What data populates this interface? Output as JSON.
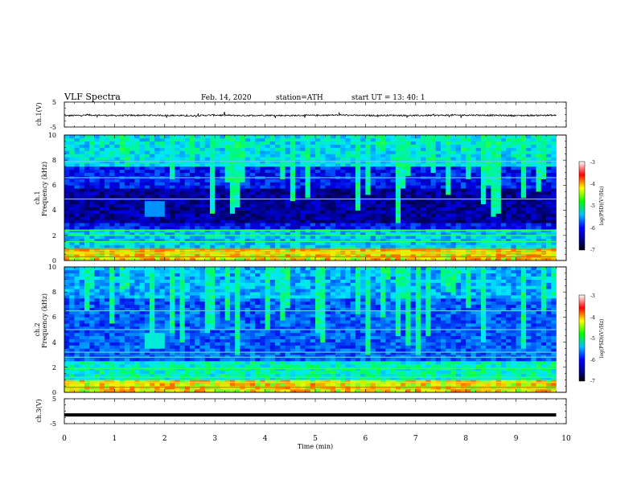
{
  "header": {
    "title": "VLF  Spectra",
    "date": "Feb. 14, 2020",
    "station": "station=ATH",
    "start": "start  UT  =   13: 40: 1"
  },
  "chart_data": [
    {
      "type": "line",
      "panel": "ch1-waveform",
      "ylabel": "ch.1(V)",
      "ylim": [
        -5,
        5
      ],
      "yticks": [
        "5",
        "-5"
      ],
      "xlim": [
        0,
        10
      ],
      "series": [
        {
          "color": "#000000",
          "x": [
            0,
            0.5,
            1,
            1.5,
            2,
            2.5,
            3,
            3.5,
            4,
            4.5,
            5,
            5.5,
            6,
            6.5,
            7,
            7.5,
            8,
            8.5,
            9,
            9.5,
            9.8
          ],
          "values": [
            -0.5,
            -0.2,
            -0.4,
            -0.3,
            -0.3,
            -0.5,
            -0.2,
            -0.4,
            -0.3,
            -0.4,
            -0.3,
            -0.2,
            -0.4,
            -0.3,
            -0.4,
            -0.3,
            -0.2,
            -0.3,
            -0.4,
            -0.3,
            -0.3
          ]
        }
      ]
    },
    {
      "type": "heatmap",
      "panel": "ch1-spectrogram",
      "title": "ch.1",
      "ylabel": "Frequency  (kHz)",
      "ylim": [
        0,
        10
      ],
      "yticks": [
        "0",
        "2",
        "4",
        "6",
        "8",
        "10"
      ],
      "xlim": [
        0,
        10
      ],
      "data_end_min": 9.8,
      "colorbar": {
        "label": "log(PSD)(V²/Hz)",
        "range": [
          -7,
          -3
        ],
        "ticks": [
          "-3",
          "-4",
          "-5",
          "-6",
          "-7"
        ]
      }
    },
    {
      "type": "heatmap",
      "panel": "ch2-spectrogram",
      "title": "ch.2",
      "ylabel": "Frequency  (kHz)",
      "ylim": [
        0,
        10
      ],
      "yticks": [
        "0",
        "2",
        "4",
        "6",
        "8",
        "10"
      ],
      "xlim": [
        0,
        10
      ],
      "data_end_min": 9.8,
      "colorbar": {
        "label": "log(PSD)(V²/Hz)",
        "range": [
          -7,
          -3
        ],
        "ticks": [
          "-3",
          "-4",
          "-5",
          "-6",
          "-7"
        ]
      }
    },
    {
      "type": "line",
      "panel": "ch3-waveform",
      "ylabel": "ch.3(V)",
      "ylim": [
        -5,
        5
      ],
      "yticks": [
        "5",
        "-5"
      ],
      "xlim": [
        0,
        10
      ],
      "xlabel": "Time  (min)",
      "xticks": [
        "0",
        "1",
        "2",
        "3",
        "4",
        "5",
        "6",
        "7",
        "8",
        "9",
        "10"
      ],
      "series": [
        {
          "color": "#000000",
          "x": [
            0,
            9.8
          ],
          "values": [
            -1.5,
            -1.5
          ]
        }
      ]
    }
  ]
}
